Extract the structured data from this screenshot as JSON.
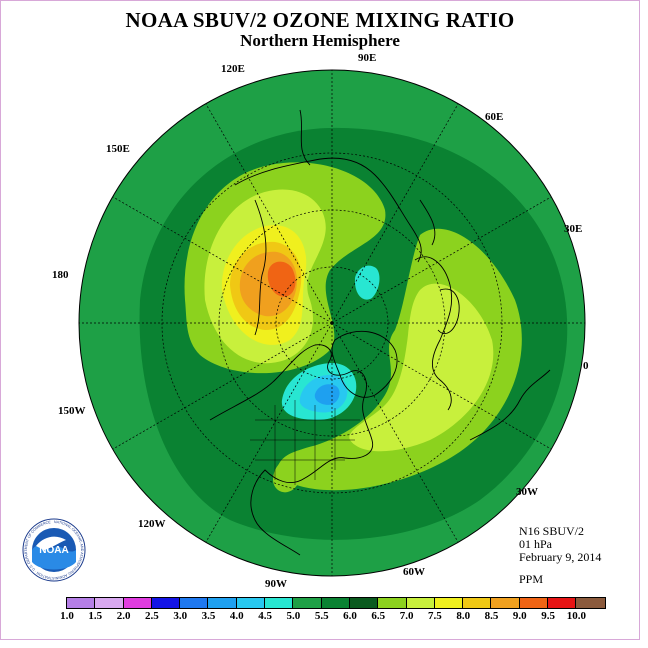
{
  "title": "NOAA SBUV/2 OZONE MIXING RATIO",
  "subtitle": "Northern Hemisphere",
  "longitude_labels": {
    "e90": "90E",
    "e60": "60E",
    "e30": "30E",
    "zero": "0",
    "w30": "30W",
    "w60": "60W",
    "w90": "90W",
    "w120": "120W",
    "w150": "150W",
    "d180": "180",
    "e150": "150E",
    "e120": "120E"
  },
  "info": {
    "instrument": "N16 SBUV/2",
    "level": "01 hPa",
    "date": "February 9, 2014",
    "units": "PPM"
  },
  "colorbar": {
    "ticks": [
      "1.0",
      "1.5",
      "2.0",
      "2.5",
      "3.0",
      "3.5",
      "4.0",
      "4.5",
      "5.0",
      "5.5",
      "6.0",
      "6.5",
      "7.0",
      "7.5",
      "8.0",
      "8.5",
      "9.0",
      "9.5",
      "10.0"
    ],
    "colors": [
      "#b57fe6",
      "#d8a8f0",
      "#e03ce0",
      "#1414e6",
      "#1e78f0",
      "#1ea0f0",
      "#28c8f0",
      "#28e6d2",
      "#1ea046",
      "#0a8232",
      "#0a5a1e",
      "#8cd21e",
      "#c8f03c",
      "#f0f01e",
      "#f0c814",
      "#f0a01e",
      "#f06414",
      "#e61414",
      "#8b5a3c"
    ]
  },
  "logo": {
    "text": "NOAA",
    "ring_text": "NATIONAL OCEANIC AND ATMOSPHERIC ADMINISTRATION · U.S. DEPARTMENT OF COMMERCE"
  },
  "map_colors": {
    "outer": "#1ea046",
    "band": "#0a8232",
    "lime": "#8cd21e",
    "yellowgreen": "#c8f03c",
    "yellow": "#f0f01e",
    "orange1": "#f0c814",
    "orange2": "#f0a01e",
    "orange3": "#f06414",
    "cyan": "#28e6d2",
    "skyblue": "#28c8f0",
    "blue": "#1ea0f0"
  }
}
